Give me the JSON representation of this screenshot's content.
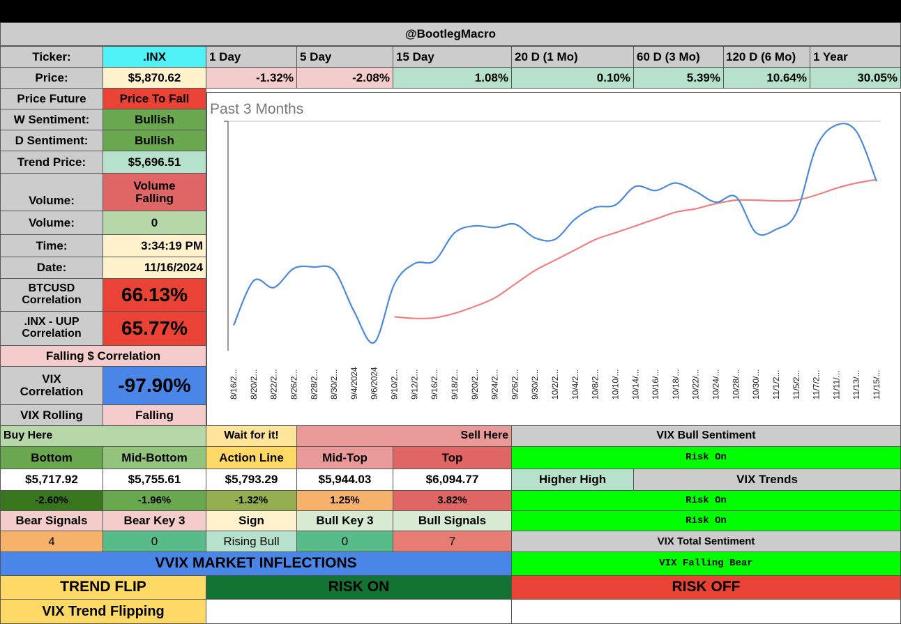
{
  "header": {
    "title": "@BootlegMacro"
  },
  "ticker": {
    "label": "Ticker:",
    "value": ".INX"
  },
  "price": {
    "label": "Price:",
    "value": "$5,870.62"
  },
  "periods": [
    {
      "label": "1 Day",
      "change": "-1.32%"
    },
    {
      "label": "5 Day",
      "change": "-2.08%"
    },
    {
      "label": "15 Day",
      "change": "1.08%"
    },
    {
      "label": "20 D (1 Mo)",
      "change": "0.10%"
    },
    {
      "label": "60 D (3 Mo)",
      "change": "5.39%"
    },
    {
      "label": "120 D (6 Mo)",
      "change": "10.64%"
    },
    {
      "label": "1 Year",
      "change": "30.05%"
    }
  ],
  "stats": {
    "price_future": {
      "label": "Price Future",
      "value": "Price To Fall"
    },
    "w_sentiment": {
      "label": "W Sentiment:",
      "value": "Bullish"
    },
    "d_sentiment": {
      "label": "D Sentiment:",
      "value": "Bullish"
    },
    "trend_price": {
      "label": "Trend Price:",
      "value": "$5,696.51"
    },
    "volume_trend": {
      "label": "Volume:",
      "value": "Volume Falling"
    },
    "volume": {
      "label": "Volume:",
      "value": "0"
    },
    "time": {
      "label": "Time:",
      "value": "3:34:19 PM"
    },
    "date": {
      "label": "Date:",
      "value": "11/16/2024"
    },
    "btc_corr": {
      "label": "BTCUSD Correlation",
      "value": "66.13%"
    },
    "uup_corr": {
      "label": ".INX - UUP Correlation",
      "value": "65.77%"
    },
    "falling_corr": "Falling $ Correlation",
    "vix_corr": {
      "label": "VIX Correlation",
      "value": "-97.90%"
    },
    "vix_rolling": {
      "label": "VIX Rolling",
      "value": "Falling"
    }
  },
  "chart_data": {
    "type": "line",
    "title": "Past 3 Months",
    "x": [
      "8/16/2...",
      "8/20/2...",
      "8/22/2...",
      "8/26/2...",
      "8/28/2...",
      "8/30/2...",
      "9/4/2024",
      "9/6/2024",
      "9/10/2...",
      "9/12/2...",
      "9/16/2...",
      "9/18/2...",
      "9/20/2...",
      "9/24/2...",
      "9/26/2...",
      "9/30/2...",
      "10/2/2...",
      "10/4/2...",
      "10/8/2...",
      "10/10/...",
      "10/14/...",
      "10/16/...",
      "10/18/...",
      "10/22/...",
      "10/24/...",
      "10/28/...",
      "10/30/...",
      "11/1/2...",
      "11/5/2...",
      "11/7/2...",
      "11/11/...",
      "11/13/...",
      "11/15/..."
    ],
    "series": [
      {
        "color": "#4a89dc",
        "values": [
          5450,
          5580,
          5560,
          5616,
          5620,
          5610,
          5490,
          5400,
          5570,
          5630,
          5638,
          5720,
          5740,
          5735,
          5745,
          5705,
          5701,
          5760,
          5794,
          5801,
          5855,
          5843,
          5865,
          5840,
          5809,
          5825,
          5720,
          5730,
          5777,
          5970,
          6034,
          6015,
          5870
        ]
      },
      {
        "color": "#f08080",
        "values": [
          null,
          null,
          null,
          null,
          null,
          null,
          null,
          null,
          5475,
          5470,
          5472,
          5485,
          5505,
          5530,
          5570,
          5610,
          5640,
          5670,
          5700,
          5720,
          5740,
          5760,
          5780,
          5790,
          5805,
          5815,
          5815,
          5813,
          5815,
          5830,
          5850,
          5865,
          5875
        ]
      }
    ],
    "ylim": [
      5380,
      6045
    ]
  },
  "levels": {
    "buy_here": "Buy Here",
    "wait": "Wait for it!",
    "sell_here": "Sell Here",
    "headers": [
      "Bottom",
      "Mid-Bottom",
      "Action Line",
      "Mid-Top",
      "Top"
    ],
    "prices": [
      "$5,717.92",
      "$5,755.61",
      "$5,793.29",
      "$5,944.03",
      "$6,094.77"
    ],
    "pcts": [
      "-2.60%",
      "-1.96%",
      "-1.32%",
      "1.25%",
      "3.82%"
    ]
  },
  "signals": {
    "headers": [
      "Bear Signals",
      "Bear Key 3",
      "Sign",
      "Bull Key 3",
      "Bull Signals"
    ],
    "values": [
      "4",
      "0",
      "Rising Bull",
      "0",
      "7"
    ]
  },
  "vix": {
    "bull_sentiment_label": "VIX Bull Sentiment",
    "risk_on_1": "Risk On",
    "higher_high": "Higher High",
    "trends_label": "VIX Trends",
    "risk_on_2": "Risk On",
    "risk_on_3": "Risk On",
    "total_sentiment_label": "VIX Total Sentiment",
    "falling_bear": "VIX Falling Bear"
  },
  "inflections": {
    "title": "VVIX MARKET INFLECTIONS",
    "trend_flip": "TREND FLIP",
    "risk_on": "RISK ON",
    "risk_off": "RISK OFF",
    "vix_trend_flipping": "VIX Trend Flipping"
  },
  "colors": {
    "gray": "#cccccc",
    "cyan": "#4ff2f7",
    "cream": "#fff2cc",
    "pink": "#f4cccc",
    "mint": "#b6e1cd",
    "green": "#6aa84f",
    "red": "#ea4335",
    "blue": "#4a86e8",
    "lime": "#00ff00",
    "darkgreen": "#137333"
  }
}
